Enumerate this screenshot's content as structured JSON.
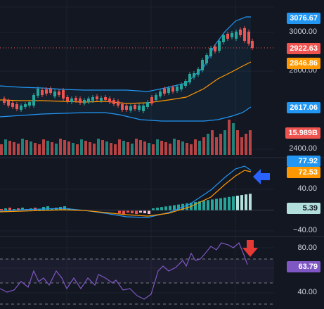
{
  "colors": {
    "up": "#26a69a",
    "down": "#ef5350",
    "bollinger": "#2196f3",
    "ma": "#ff9800",
    "macd": "#2196f3",
    "signal": "#ff9800",
    "rsi": "#7e57c2",
    "grid": "#1e222d",
    "bg": "#131722"
  },
  "price_axis": {
    "t3000": "3000.00",
    "t2800": "2800.00",
    "t2400": "2400.00"
  },
  "price_tags": {
    "upper_band": "3076.67",
    "last_price": "2922.63",
    "ma": "2846.86",
    "lower_band": "2617.06",
    "volume": "15.989B"
  },
  "macd_axis": {
    "t40": "40.00",
    "tm40": "−40.00"
  },
  "macd_tags": {
    "macd": "77.92",
    "signal": "72.53",
    "hist": "5.39"
  },
  "rsi_axis": {
    "t80": "80.00",
    "t40": "40.00"
  },
  "rsi_tags": {
    "rsi": "63.79"
  },
  "icons": {
    "macd_arrow": "arrow-left-icon",
    "rsi_arrow": "arrow-down-icon"
  }
}
